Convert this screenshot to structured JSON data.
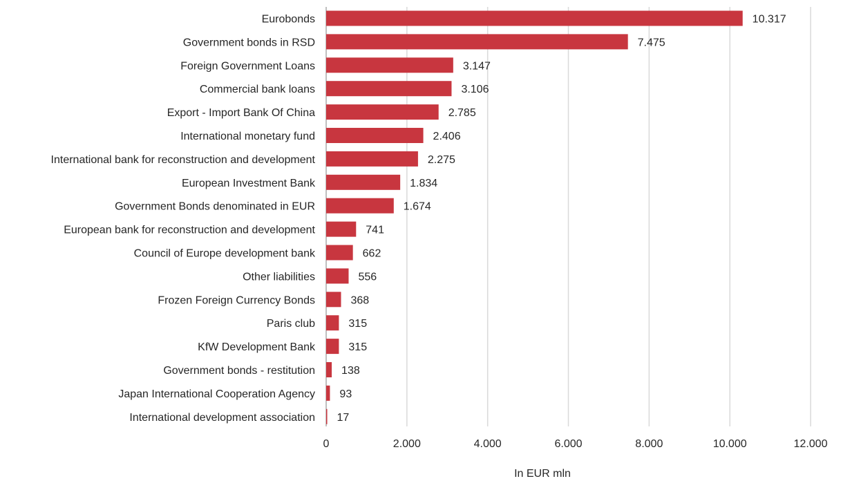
{
  "chart_data": {
    "type": "bar",
    "orientation": "horizontal",
    "title": "",
    "xlabel": "In EUR mln",
    "ylabel": "",
    "xlim": [
      0,
      12000
    ],
    "x_ticks": [
      0,
      2000,
      4000,
      6000,
      8000,
      10000,
      12000
    ],
    "x_tick_labels": [
      "0",
      "2.000",
      "4.000",
      "6.000",
      "8.000",
      "10.000",
      "12.000"
    ],
    "grid": "vertical",
    "legend": "none",
    "bar_color": "#C8363F",
    "categories": [
      "Eurobonds",
      "Government bonds in RSD",
      "Foreign Government Loans",
      "Commercial bank loans",
      "Export - Import Bank Of China",
      "International monetary fund",
      "International bank for reconstruction and development",
      "European Investment Bank",
      "Government Bonds denominated in EUR",
      "European bank for reconstruction and development",
      "Council of Europe development bank",
      "Other liabilities",
      "Frozen Foreign Currency Bonds",
      "Paris club",
      "KfW Development Bank",
      "Government bonds - restitution",
      "Japan International Cooperation Agency",
      "International development association"
    ],
    "values": [
      10317,
      7475,
      3147,
      3106,
      2785,
      2406,
      2275,
      1834,
      1674,
      741,
      662,
      556,
      368,
      315,
      315,
      138,
      93,
      17
    ],
    "value_labels": [
      "10.317",
      "7.475",
      "3.147",
      "3.106",
      "2.785",
      "2.406",
      "2.275",
      "1.834",
      "1.674",
      "741",
      "662",
      "556",
      "368",
      "315",
      "315",
      "138",
      "93",
      "17"
    ]
  }
}
